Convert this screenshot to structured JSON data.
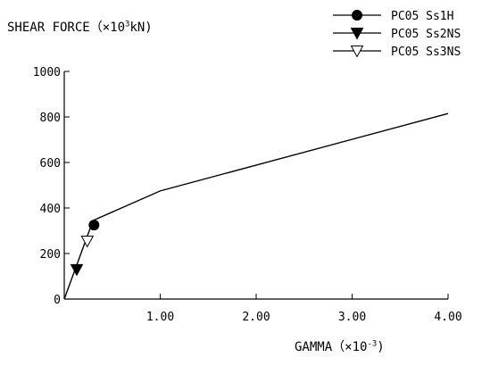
{
  "chart_data": {
    "type": "line",
    "ylabel": {
      "prefix": "SHEAR FORCE（×10",
      "exp": "3",
      "suffix": "kN)"
    },
    "xlabel": {
      "prefix": "GAMMA（×10",
      "exp": "-3",
      "suffix": ")"
    },
    "xlim": [
      0,
      4.0
    ],
    "ylim": [
      0,
      1000
    ],
    "xticks": [
      1.0,
      2.0,
      3.0,
      4.0
    ],
    "xtick_labels": [
      "1.00",
      "2.00",
      "3.00",
      "4.00"
    ],
    "yticks": [
      0,
      200,
      400,
      600,
      800,
      1000
    ],
    "ytick_labels": [
      "0",
      "200",
      "400",
      "600",
      "800",
      "1000"
    ],
    "skeleton_curve": {
      "x": [
        0,
        0.3,
        1.0,
        4.0
      ],
      "y": [
        0,
        345,
        475,
        815
      ]
    },
    "series": [
      {
        "name": "PC05 Ss1H",
        "marker": "filled-circle",
        "x": [
          0.31
        ],
        "y": [
          325
        ]
      },
      {
        "name": "PC05 Ss2NS",
        "marker": "filled-triangle-down",
        "x": [
          0.13
        ],
        "y": [
          130
        ]
      },
      {
        "name": "PC05 Ss3NS",
        "marker": "open-triangle-down",
        "x": [
          0.24
        ],
        "y": [
          255
        ]
      }
    ],
    "legend_position": "top-right",
    "grid": false
  }
}
